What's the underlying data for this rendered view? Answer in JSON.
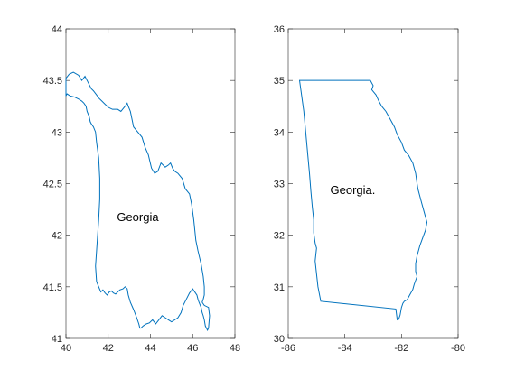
{
  "chart_data": [
    {
      "type": "line",
      "title": "",
      "xlabel": "",
      "ylabel": "",
      "xlim": [
        40,
        48
      ],
      "ylim": [
        41,
        44
      ],
      "xticks": [
        40,
        42,
        44,
        46,
        48
      ],
      "yticks": [
        41,
        41.5,
        42,
        42.5,
        43,
        43.5,
        44
      ],
      "xtick_labels": [
        "40",
        "42",
        "44",
        "46",
        "48"
      ],
      "ytick_labels": [
        "41",
        "41.5",
        "42",
        "42.5",
        "43",
        "43.5",
        "44"
      ],
      "grid": false,
      "line_color": "#0072BD",
      "annotation": {
        "text": "Georgia",
        "x": 43.4,
        "y": 42.17
      },
      "series": [
        {
          "x": [
            40.0,
            40.15,
            40.35,
            40.6,
            40.75,
            40.9,
            41.05,
            41.2,
            41.3,
            41.45,
            41.55,
            41.7,
            41.85,
            42.0,
            42.2,
            42.45,
            42.6,
            42.8,
            42.9,
            42.95,
            43.05,
            43.1,
            43.2,
            43.4,
            43.6,
            43.75,
            43.9,
            44.05,
            44.2,
            44.35,
            44.5,
            44.7,
            44.85,
            44.95,
            45.05,
            45.15,
            45.3,
            45.5,
            45.65,
            45.85,
            45.95,
            46.05,
            46.1,
            46.15,
            46.25,
            46.4,
            46.5,
            46.55,
            46.55,
            46.5,
            46.45,
            46.55,
            46.75,
            46.8,
            46.75,
            46.7,
            46.6,
            46.55,
            46.5,
            46.45,
            46.4,
            46.3,
            46.25,
            46.2,
            46.1,
            46.0,
            45.85,
            45.7,
            45.55,
            45.45,
            45.3,
            45.15,
            45.0,
            44.85,
            44.7,
            44.55,
            44.4,
            44.25,
            44.1,
            43.95,
            43.8,
            43.65,
            43.55,
            43.5,
            43.45,
            43.35,
            43.2,
            43.05,
            42.95,
            42.9,
            42.8,
            42.7,
            42.55,
            42.45,
            42.35,
            42.25,
            42.15,
            42.05,
            41.95,
            41.85,
            41.75,
            41.65,
            41.55,
            41.45,
            41.4,
            41.45,
            41.5,
            41.55,
            41.6,
            41.6,
            41.55,
            41.45,
            41.4,
            41.3,
            41.2,
            41.15,
            41.1,
            41.0,
            40.95,
            40.85,
            40.75,
            40.6,
            40.4,
            40.2,
            40.05,
            40.0
          ],
          "y": [
            43.52,
            43.56,
            43.58,
            43.55,
            43.5,
            43.54,
            43.48,
            43.42,
            43.4,
            43.36,
            43.33,
            43.3,
            43.27,
            43.24,
            43.22,
            43.22,
            43.2,
            43.25,
            43.28,
            43.25,
            43.2,
            43.15,
            43.05,
            43.0,
            42.95,
            42.85,
            42.78,
            42.65,
            42.6,
            42.62,
            42.7,
            42.66,
            42.68,
            42.7,
            42.65,
            42.62,
            42.6,
            42.55,
            42.45,
            42.4,
            42.3,
            42.15,
            42.05,
            41.95,
            41.85,
            41.72,
            41.6,
            41.5,
            41.42,
            41.38,
            41.35,
            41.32,
            41.3,
            41.22,
            41.1,
            41.08,
            41.12,
            41.18,
            41.22,
            41.25,
            41.3,
            41.35,
            41.38,
            41.42,
            41.45,
            41.48,
            41.44,
            41.38,
            41.32,
            41.25,
            41.2,
            41.18,
            41.16,
            41.18,
            41.2,
            41.22,
            41.18,
            41.14,
            41.18,
            41.15,
            41.14,
            41.12,
            41.1,
            41.1,
            41.14,
            41.2,
            41.28,
            41.35,
            41.42,
            41.48,
            41.5,
            41.48,
            41.47,
            41.45,
            41.43,
            41.44,
            41.46,
            41.45,
            41.42,
            41.44,
            41.47,
            41.45,
            41.5,
            41.55,
            41.7,
            41.85,
            42.0,
            42.15,
            42.35,
            42.55,
            42.75,
            42.9,
            43.0,
            43.05,
            43.08,
            43.1,
            43.15,
            43.2,
            43.25,
            43.28,
            43.3,
            43.32,
            43.34,
            43.35,
            43.37,
            43.35
          ]
        }
      ]
    },
    {
      "type": "line",
      "title": "",
      "xlabel": "",
      "ylabel": "",
      "xlim": [
        -86,
        -80
      ],
      "ylim": [
        30,
        36
      ],
      "xticks": [
        -86,
        -84,
        -82,
        -80
      ],
      "yticks": [
        30,
        31,
        32,
        33,
        34,
        35,
        36
      ],
      "xtick_labels": [
        "-86",
        "-84",
        "-82",
        "-80"
      ],
      "ytick_labels": [
        "30",
        "31",
        "32",
        "33",
        "34",
        "35",
        "36"
      ],
      "grid": false,
      "line_color": "#0072BD",
      "annotation": {
        "text": "Georgia.",
        "x": -83.72,
        "y": 32.87
      },
      "series": [
        {
          "x": [
            -85.6,
            -84.3,
            -83.1,
            -83.0,
            -83.05,
            -82.9,
            -82.8,
            -82.7,
            -82.55,
            -82.4,
            -82.25,
            -82.15,
            -82.0,
            -81.9,
            -81.75,
            -81.6,
            -81.5,
            -81.45,
            -81.42,
            -81.3,
            -81.2,
            -81.1,
            -81.15,
            -81.25,
            -81.35,
            -81.45,
            -81.5,
            -81.5,
            -81.45,
            -81.55,
            -81.6,
            -81.7,
            -81.8,
            -81.9,
            -81.95,
            -82.0,
            -82.05,
            -82.1,
            -82.15,
            -82.2,
            -84.85,
            -84.95,
            -85.0,
            -85.05,
            -85.0,
            -85.05,
            -85.1,
            -85.1,
            -85.15,
            -85.2,
            -85.25,
            -85.35,
            -85.45,
            -85.6
          ],
          "y": [
            35.0,
            35.0,
            35.0,
            34.9,
            34.82,
            34.72,
            34.6,
            34.5,
            34.4,
            34.25,
            34.1,
            33.95,
            33.8,
            33.65,
            33.55,
            33.4,
            33.2,
            33.0,
            32.9,
            32.65,
            32.45,
            32.25,
            32.1,
            31.95,
            31.8,
            31.6,
            31.45,
            31.3,
            31.2,
            31.05,
            30.95,
            30.85,
            30.75,
            30.72,
            30.68,
            30.6,
            30.45,
            30.37,
            30.36,
            30.57,
            30.72,
            31.0,
            31.25,
            31.5,
            31.75,
            31.85,
            32.05,
            32.3,
            32.55,
            32.85,
            33.2,
            33.8,
            34.4,
            35.0
          ]
        }
      ]
    }
  ]
}
